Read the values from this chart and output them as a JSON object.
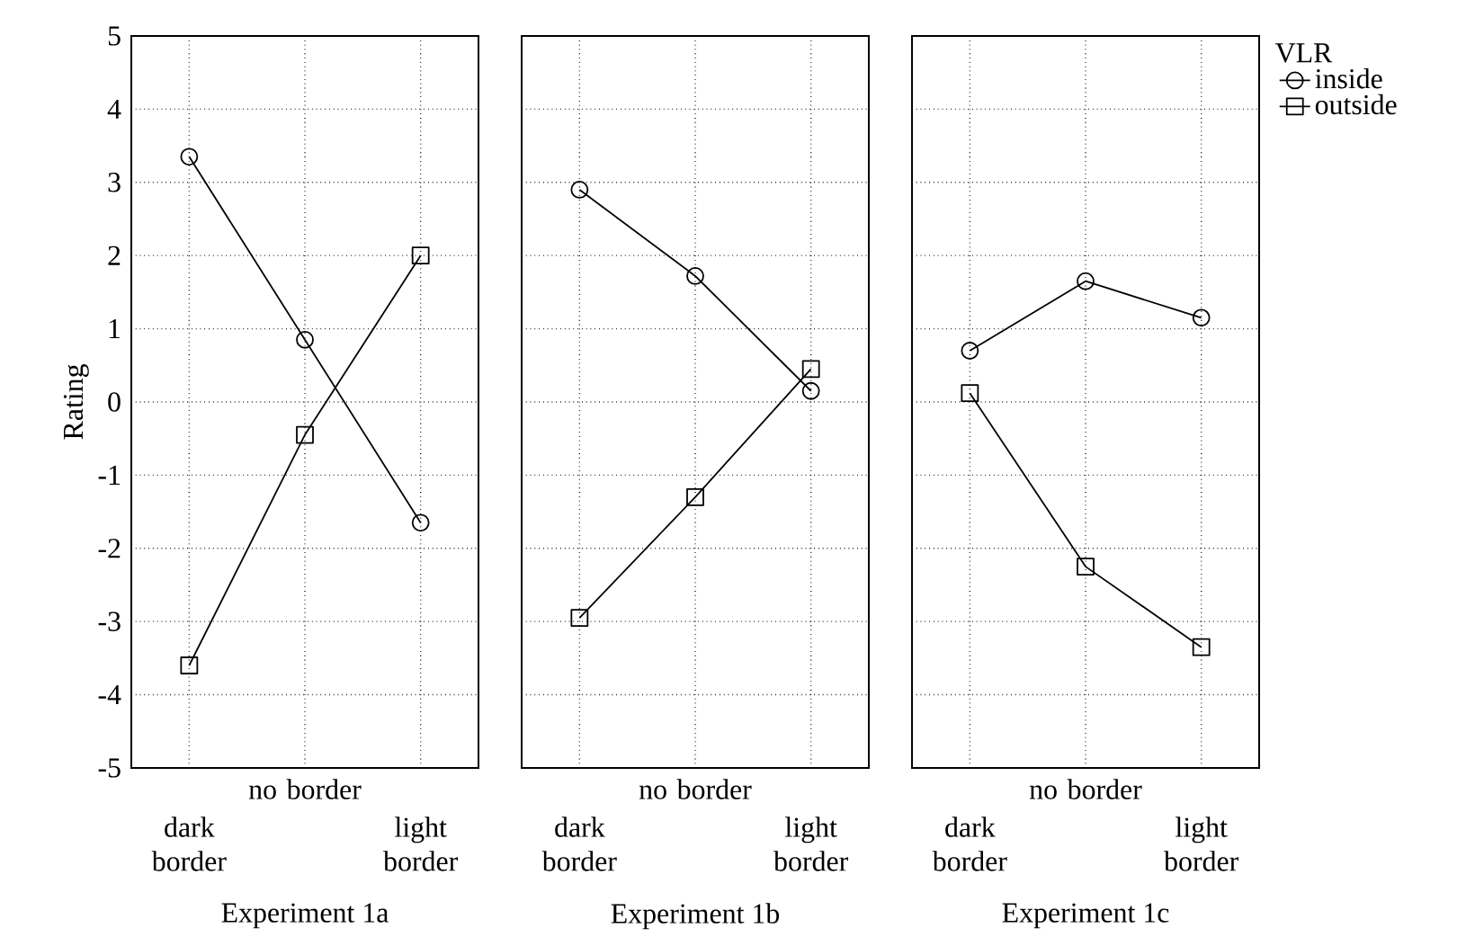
{
  "chart_data": [
    {
      "type": "line",
      "xlabel": "Experiment 1a",
      "ylabel": "Rating",
      "categories": [
        "dark border",
        "no border",
        "light border"
      ],
      "ylim": [
        -5,
        5
      ],
      "yticks": [
        -5,
        -4,
        -3,
        -2,
        -1,
        0,
        1,
        2,
        3,
        4,
        5
      ],
      "grid": true,
      "series": [
        {
          "color": "#000000",
          "marker": "circle",
          "values": [
            3.35,
            0.85,
            -1.65
          ]
        },
        {
          "color": "#000000",
          "marker": "square",
          "values": [
            -3.6,
            -0.45,
            2.0
          ]
        }
      ]
    },
    {
      "type": "line",
      "xlabel": "Experiment 1b",
      "categories": [
        "dark border",
        "no border",
        "light border"
      ],
      "ylim": [
        -5,
        5
      ],
      "yticks": [
        -5,
        -4,
        -3,
        -2,
        -1,
        0,
        1,
        2,
        3,
        4,
        5
      ],
      "grid": true,
      "tick_labels": "x",
      "series": [
        {
          "color": "#000000",
          "marker": "circle",
          "values": [
            2.9,
            1.72,
            0.15
          ]
        },
        {
          "color": "#000000",
          "marker": "square",
          "values": [
            -2.95,
            -1.3,
            0.45
          ]
        }
      ]
    },
    {
      "type": "line",
      "xlabel": "Experiment 1c",
      "categories": [
        "dark border",
        "no border",
        "light border"
      ],
      "ylim": [
        -5,
        5
      ],
      "yticks": [
        -5,
        -4,
        -3,
        -2,
        -1,
        0,
        1,
        2,
        3,
        4,
        5
      ],
      "grid": true,
      "tick_labels": "x",
      "legend": "top right",
      "legend_title": "VLR",
      "series": [
        {
          "name": "inside",
          "color": "#000000",
          "marker": "circle",
          "values": [
            0.7,
            1.65,
            1.15
          ]
        },
        {
          "name": "outside",
          "color": "#000000",
          "marker": "square",
          "values": [
            0.12,
            -2.25,
            -3.35
          ]
        }
      ]
    }
  ]
}
